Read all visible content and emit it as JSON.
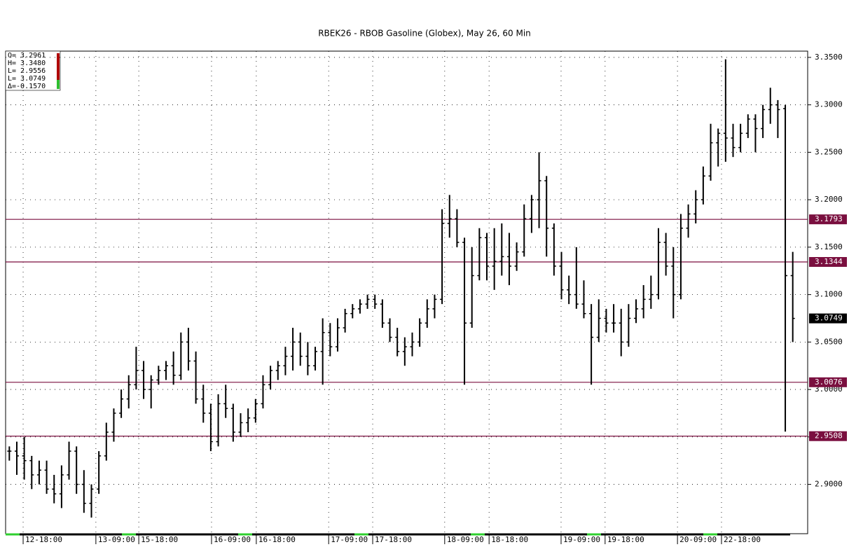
{
  "chart_data": {
    "type": "ohlc",
    "title": "RBEK26 - RBOB Gasoline (Globex), May 26, 60 Min",
    "info": [
      "O= 3.2961",
      "H= 3.3480",
      "L= 2.9556",
      "L= 3.0749",
      "Δ=-0.1570"
    ],
    "color": "#000000",
    "level_color": "#7a0f3f",
    "levels": [
      3.1793,
      3.1344,
      3.0076,
      2.9508
    ],
    "xlim": [
      0,
      215
    ],
    "xticks": [
      {
        "value": 4.7,
        "label": "12-18:00"
      },
      {
        "value": 24.2,
        "label": "13-09:00"
      },
      {
        "value": 35.7,
        "label": "15-18:00"
      },
      {
        "value": 55.2,
        "label": "16-09:00"
      },
      {
        "value": 67.2,
        "label": "16-18:00"
      },
      {
        "value": 86.6,
        "label": "17-09:00"
      },
      {
        "value": 98.4,
        "label": "17-18:00"
      },
      {
        "value": 117.7,
        "label": "18-09:00"
      },
      {
        "value": 129.6,
        "label": "18-18:00"
      },
      {
        "value": 148.9,
        "label": "19-09:00"
      },
      {
        "value": 160.7,
        "label": "19-18:00"
      },
      {
        "value": 180.1,
        "label": "20-09:00"
      },
      {
        "value": 191.9,
        "label": "22-18:00"
      }
    ],
    "ylim": [
      2.848,
      3.3566
    ],
    "yticks": [
      {
        "value": 2.9,
        "label": "2.9000"
      },
      {
        "value": 2.95,
        "label": "2.9500"
      },
      {
        "value": 3.0,
        "label": "3.0000"
      },
      {
        "value": 3.05,
        "label": "3.0500"
      },
      {
        "value": 3.1,
        "label": "3.1000"
      },
      {
        "value": 3.15,
        "label": "3.1500"
      },
      {
        "value": 3.2,
        "label": "3.2000"
      },
      {
        "value": 3.25,
        "label": "3.2500"
      },
      {
        "value": 3.3,
        "label": "3.3000"
      },
      {
        "value": 3.35,
        "label": "3.3500"
      }
    ],
    "grid": true,
    "x": [
      1,
      3,
      5,
      7,
      9,
      11,
      13,
      15,
      17,
      19,
      21,
      23,
      25,
      27,
      29,
      31,
      33,
      35,
      37,
      39,
      41,
      43,
      45,
      47,
      49,
      51,
      53,
      55,
      57,
      59,
      61,
      63,
      65,
      67,
      69,
      71,
      73,
      75,
      77,
      79,
      81,
      83,
      85,
      87,
      89,
      91,
      93,
      95,
      97,
      99,
      101,
      103,
      105,
      107,
      109,
      111,
      113,
      115,
      117,
      119,
      121,
      123,
      125,
      127,
      129,
      131,
      133,
      135,
      137,
      139,
      141,
      143,
      145,
      147,
      149,
      151,
      153,
      155,
      157,
      159,
      161,
      163,
      165,
      167,
      169,
      171,
      173,
      175,
      177,
      179,
      181,
      183,
      185,
      187,
      189,
      191,
      193,
      195,
      197,
      199,
      201,
      203,
      205,
      207,
      209,
      211
    ],
    "ohlc": [
      [
        2.935,
        2.94,
        2.925,
        2.935
      ],
      [
        2.935,
        2.945,
        2.91,
        2.93
      ],
      [
        2.93,
        2.95,
        2.905,
        2.925
      ],
      [
        2.925,
        2.93,
        2.895,
        2.91
      ],
      [
        2.91,
        2.925,
        2.9,
        2.915
      ],
      [
        2.915,
        2.925,
        2.89,
        2.895
      ],
      [
        2.895,
        2.91,
        2.88,
        2.89
      ],
      [
        2.89,
        2.92,
        2.875,
        2.91
      ],
      [
        2.91,
        2.945,
        2.905,
        2.935
      ],
      [
        2.935,
        2.94,
        2.89,
        2.9
      ],
      [
        2.9,
        2.915,
        2.87,
        2.88
      ],
      [
        2.88,
        2.9,
        2.865,
        2.895
      ],
      [
        2.895,
        2.935,
        2.89,
        2.93
      ],
      [
        2.93,
        2.965,
        2.925,
        2.955
      ],
      [
        2.955,
        2.98,
        2.945,
        2.975
      ],
      [
        2.975,
        3.0,
        2.97,
        2.99
      ],
      [
        2.99,
        3.015,
        2.98,
        3.005
      ],
      [
        3.005,
        3.045,
        3.0,
        3.02
      ],
      [
        3.02,
        3.03,
        2.99,
        3.0
      ],
      [
        3.0,
        3.015,
        2.98,
        3.01
      ],
      [
        3.01,
        3.025,
        3.005,
        3.02
      ],
      [
        3.02,
        3.03,
        3.01,
        3.025
      ],
      [
        3.025,
        3.04,
        3.005,
        3.015
      ],
      [
        3.015,
        3.06,
        3.01,
        3.05
      ],
      [
        3.05,
        3.065,
        3.02,
        3.03
      ],
      [
        3.03,
        3.04,
        2.985,
        2.99
      ],
      [
        2.99,
        3.005,
        2.965,
        2.975
      ],
      [
        2.975,
        2.985,
        2.935,
        2.945
      ],
      [
        2.945,
        2.995,
        2.94,
        2.985
      ],
      [
        2.985,
        3.005,
        2.97,
        2.98
      ],
      [
        2.98,
        2.985,
        2.945,
        2.955
      ],
      [
        2.955,
        2.975,
        2.95,
        2.965
      ],
      [
        2.965,
        2.98,
        2.955,
        2.97
      ],
      [
        2.97,
        2.99,
        2.965,
        2.985
      ],
      [
        2.985,
        3.015,
        2.98,
        3.005
      ],
      [
        3.005,
        3.025,
        3.0,
        3.02
      ],
      [
        3.02,
        3.03,
        3.01,
        3.025
      ],
      [
        3.025,
        3.045,
        3.015,
        3.035
      ],
      [
        3.035,
        3.065,
        3.02,
        3.05
      ],
      [
        3.05,
        3.06,
        3.025,
        3.035
      ],
      [
        3.035,
        3.05,
        3.015,
        3.025
      ],
      [
        3.025,
        3.045,
        3.02,
        3.04
      ],
      [
        3.04,
        3.075,
        3.005,
        3.06
      ],
      [
        3.06,
        3.07,
        3.035,
        3.045
      ],
      [
        3.045,
        3.075,
        3.04,
        3.065
      ],
      [
        3.065,
        3.085,
        3.06,
        3.08
      ],
      [
        3.08,
        3.09,
        3.075,
        3.085
      ],
      [
        3.085,
        3.095,
        3.08,
        3.09
      ],
      [
        3.09,
        3.1,
        3.085,
        3.095
      ],
      [
        3.095,
        3.1,
        3.085,
        3.09
      ],
      [
        3.09,
        3.095,
        3.065,
        3.07
      ],
      [
        3.07,
        3.075,
        3.05,
        3.055
      ],
      [
        3.055,
        3.065,
        3.035,
        3.04
      ],
      [
        3.04,
        3.055,
        3.025,
        3.045
      ],
      [
        3.045,
        3.06,
        3.035,
        3.05
      ],
      [
        3.05,
        3.075,
        3.045,
        3.07
      ],
      [
        3.07,
        3.095,
        3.065,
        3.085
      ],
      [
        3.085,
        3.1,
        3.075,
        3.095
      ],
      [
        3.095,
        3.19,
        3.09,
        3.175
      ],
      [
        3.175,
        3.205,
        3.16,
        3.18
      ],
      [
        3.18,
        3.19,
        3.15,
        3.155
      ],
      [
        3.155,
        3.16,
        3.005,
        3.07
      ],
      [
        3.07,
        3.15,
        3.065,
        3.12
      ],
      [
        3.12,
        3.17,
        3.115,
        3.16
      ],
      [
        3.16,
        3.165,
        3.115,
        3.13
      ],
      [
        3.13,
        3.17,
        3.105,
        3.135
      ],
      [
        3.135,
        3.175,
        3.12,
        3.14
      ],
      [
        3.14,
        3.165,
        3.11,
        3.13
      ],
      [
        3.13,
        3.155,
        3.125,
        3.145
      ],
      [
        3.145,
        3.195,
        3.14,
        3.18
      ],
      [
        3.18,
        3.205,
        3.165,
        3.2
      ],
      [
        3.2,
        3.25,
        3.17,
        3.22
      ],
      [
        3.22,
        3.225,
        3.14,
        3.17
      ],
      [
        3.17,
        3.175,
        3.12,
        3.13
      ],
      [
        3.13,
        3.145,
        3.095,
        3.105
      ],
      [
        3.105,
        3.12,
        3.09,
        3.1
      ],
      [
        3.1,
        3.15,
        3.085,
        3.09
      ],
      [
        3.09,
        3.115,
        3.075,
        3.08
      ],
      [
        3.08,
        3.09,
        3.005,
        3.055
      ],
      [
        3.055,
        3.095,
        3.05,
        3.075
      ],
      [
        3.075,
        3.085,
        3.06,
        3.07
      ],
      [
        3.07,
        3.09,
        3.06,
        3.07
      ],
      [
        3.07,
        3.085,
        3.035,
        3.05
      ],
      [
        3.05,
        3.09,
        3.045,
        3.075
      ],
      [
        3.075,
        3.095,
        3.07,
        3.085
      ],
      [
        3.085,
        3.11,
        3.075,
        3.095
      ],
      [
        3.095,
        3.12,
        3.085,
        3.1
      ],
      [
        3.1,
        3.17,
        3.095,
        3.155
      ],
      [
        3.155,
        3.165,
        3.12,
        3.13
      ],
      [
        3.13,
        3.15,
        3.075,
        3.1
      ],
      [
        3.1,
        3.185,
        3.095,
        3.17
      ],
      [
        3.17,
        3.195,
        3.16,
        3.185
      ],
      [
        3.185,
        3.21,
        3.175,
        3.2
      ],
      [
        3.2,
        3.235,
        3.195,
        3.225
      ],
      [
        3.225,
        3.28,
        3.22,
        3.26
      ],
      [
        3.26,
        3.275,
        3.235,
        3.27
      ],
      [
        3.27,
        3.348,
        3.24,
        3.265
      ],
      [
        3.265,
        3.28,
        3.245,
        3.255
      ],
      [
        3.255,
        3.28,
        3.25,
        3.27
      ],
      [
        3.27,
        3.29,
        3.265,
        3.285
      ],
      [
        3.285,
        3.29,
        3.25,
        3.275
      ],
      [
        3.275,
        3.3,
        3.265,
        3.295
      ],
      [
        3.295,
        3.318,
        3.28,
        3.3
      ],
      [
        3.3,
        3.305,
        3.265,
        3.295
      ],
      [
        3.296,
        3.3,
        2.9556,
        3.12
      ],
      [
        3.12,
        3.145,
        3.05,
        3.0749
      ]
    ]
  }
}
